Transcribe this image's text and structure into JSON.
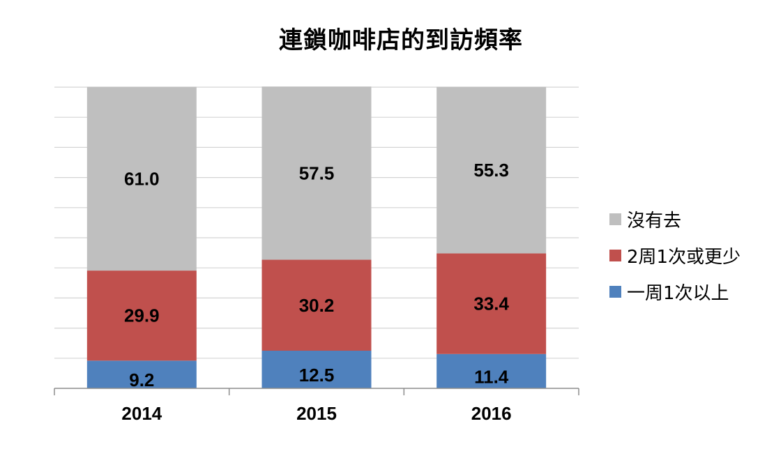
{
  "chart_data": {
    "type": "bar",
    "stacked": true,
    "title": "連鎖咖啡店的到訪頻率",
    "categories": [
      "2014",
      "2015",
      "2016"
    ],
    "series": [
      {
        "name": "一周1次以上",
        "values": [
          9.2,
          12.5,
          11.4
        ],
        "color": "#4f81bd"
      },
      {
        "name": "2周1次或更少",
        "values": [
          29.9,
          30.2,
          33.4
        ],
        "color": "#c0504d"
      },
      {
        "name": "沒有去",
        "values": [
          61.0,
          57.5,
          55.3
        ],
        "color": "#bfbfbf"
      }
    ],
    "ylim": [
      0,
      100
    ],
    "grid": true,
    "legend_position": "right"
  }
}
